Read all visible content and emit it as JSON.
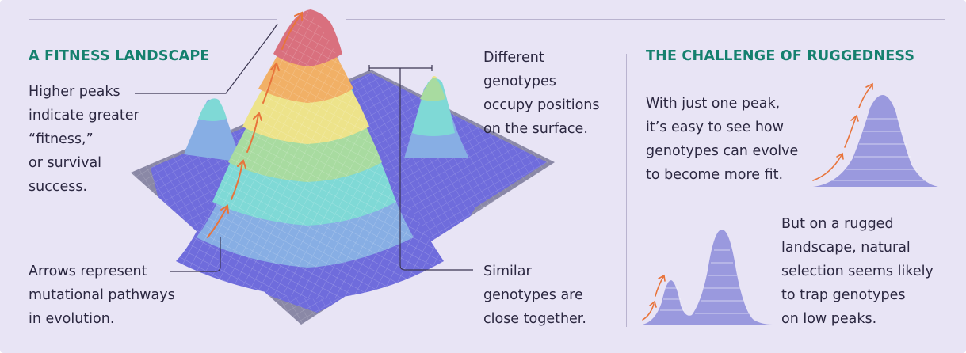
{
  "left_heading": "A FITNESS LANDSCAPE",
  "right_heading": "THE CHALLENGE OF RUGGEDNESS",
  "labels": {
    "higher_peaks": [
      "Higher peaks",
      "indicate greater",
      "“fitness,”",
      "or survival",
      "success."
    ],
    "arrows": [
      "Arrows represent",
      "mutational pathways",
      "in evolution."
    ],
    "different": [
      "Different",
      "genotypes",
      "occupy positions",
      "on the surface."
    ],
    "similar": [
      "Similar",
      "genotypes are",
      "close together."
    ],
    "one_peak": [
      "With just one peak,",
      "it’s easy to see how",
      "genotypes can evolve",
      "to become more fit."
    ],
    "rugged": [
      "But on a rugged",
      "landscape, natural",
      "selection seems likely",
      "to trap genotypes",
      "on low peaks."
    ]
  },
  "colors": {
    "background": "#e8e4f5",
    "heading": "#15806e",
    "text": "#2b2740",
    "arrow": "#e8743b",
    "mini_peak": "#9a99de",
    "band_1": "#6f6cdc",
    "band_2": "#87aee4",
    "band_3": "#7fd9d6",
    "band_4": "#a8dba0",
    "band_5": "#ede38a",
    "band_6": "#f1b066",
    "band_7": "#d9707e",
    "grid_floor": "#8a88a6"
  }
}
